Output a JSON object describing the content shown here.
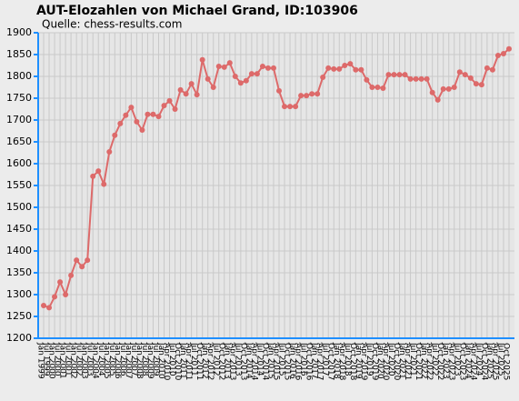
{
  "chart_data": {
    "type": "line",
    "title": "AUT-Elozahlen von Michael Grand, ID:103906",
    "subtitle": "Quelle: chess-results.com",
    "categories": [
      "Jan 1999",
      "Jul 1999",
      "Jan 2000",
      "Jul 2000",
      "Jan 2001",
      "Jul 2001",
      "Jan 2002",
      "Jul 2002",
      "Jan 2003",
      "Jul 2003",
      "Jan 2004",
      "Jul 2004",
      "Jan 2005",
      "Jul 2005",
      "Jan 2006",
      "Jul 2006",
      "Jan 2007",
      "Jul 2007",
      "Jan 2008",
      "Jul 2008",
      "Jan 2009",
      "Jul 2009",
      "Jan 2010",
      "Apr 2010",
      "Jul 2010",
      "Oct 2010",
      "Jan 2011",
      "Apr 2011",
      "Jul 2011",
      "Oct 2011",
      "Jan 2012",
      "Apr 2012",
      "Jul 2012",
      "Oct 2012",
      "Jan 2013",
      "Apr 2013",
      "Jul 2013",
      "Oct 2013",
      "Jan 2014",
      "Apr 2014",
      "Jul 2014",
      "Oct 2014",
      "Jan 2015",
      "Apr 2015",
      "Jul 2015",
      "Oct 2015",
      "Jan 2016",
      "Apr 2016",
      "Jul 2016",
      "Oct 2016",
      "Jan 2017",
      "Apr 2017",
      "Jul 2017",
      "Oct 2017",
      "Jan 2018",
      "Apr 2018",
      "Jul 2018",
      "Oct 2018",
      "Jan 2019",
      "Apr 2019",
      "Jul 2019",
      "Oct 2019",
      "Jan 2020",
      "Apr 2020",
      "Jul 2020",
      "Oct 2020",
      "Jan 2021",
      "Apr 2021",
      "Jul 2021",
      "Oct 2021",
      "Jan 2022",
      "Apr 2022",
      "Jul 2022",
      "Oct 2022",
      "Jan 2023",
      "Apr 2023",
      "Jul 2023",
      "Oct 2023",
      "Jan 2024",
      "Apr 2024",
      "Jul 2024",
      "Oct 2024",
      "Jan 2025",
      "Apr 2025",
      "Jul 2025",
      "Oct 2025"
    ],
    "series": [
      {
        "color": "#dd6a6a",
        "values": [
          1275,
          1270,
          1295,
          1329,
          1300,
          1344,
          1379,
          1364,
          1379,
          1571,
          1583,
          1553,
          1627,
          1665,
          1692,
          1711,
          1729,
          1696,
          1677,
          1713,
          1713,
          1708,
          1733,
          1744,
          1725,
          1769,
          1760,
          1783,
          1758,
          1838,
          1794,
          1775,
          1823,
          1821,
          1831,
          1800,
          1785,
          1790,
          1806,
          1806,
          1823,
          1819,
          1819,
          1767,
          1731,
          1731,
          1731,
          1756,
          1756,
          1760,
          1760,
          1798,
          1819,
          1817,
          1817,
          1825,
          1829,
          1815,
          1815,
          1792,
          1775,
          1775,
          1773,
          1804,
          1804,
          1804,
          1804,
          1794,
          1794,
          1794,
          1794,
          1763,
          1746,
          1771,
          1771,
          1775,
          1810,
          1804,
          1796,
          1783,
          1781,
          1819,
          1815,
          1848,
          1852,
          1863
        ]
      }
    ],
    "ylim": [
      1200,
      1900
    ],
    "yticks": [
      1200,
      1250,
      1300,
      1350,
      1400,
      1450,
      1500,
      1550,
      1600,
      1650,
      1700,
      1750,
      1800,
      1850,
      1900
    ],
    "grid": true
  }
}
